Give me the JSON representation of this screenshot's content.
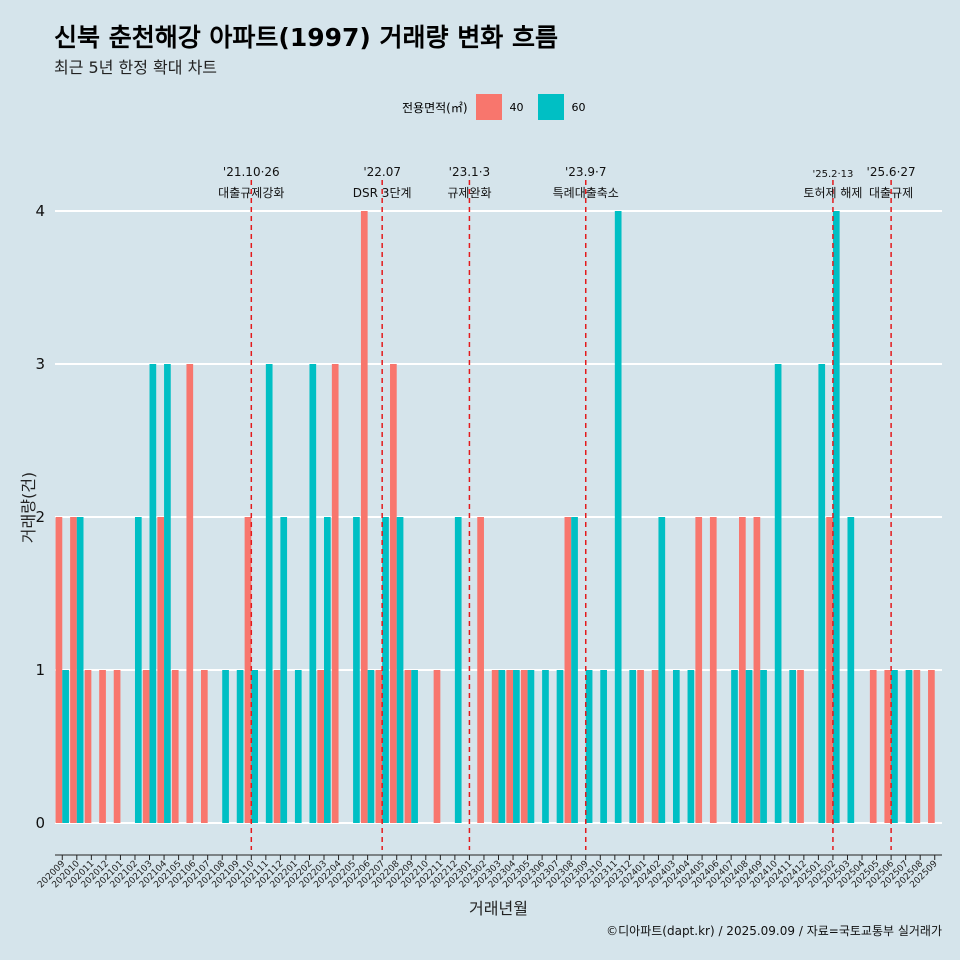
{
  "header": {
    "title": "신북 춘천해강 아파트(1997) 거래량 변화 흐름",
    "subtitle": "최근 5년 한정 확대 차트"
  },
  "legend": {
    "title": "전용면적(㎡)",
    "items": [
      {
        "label": "40",
        "color": "#f8766d"
      },
      {
        "label": "60",
        "color": "#00bfc4"
      }
    ]
  },
  "caption": "©디아파트(dapt.kr) / 2025.09.09 / 자료=국토교통부 실거래가",
  "chart_data": {
    "type": "bar",
    "xlabel": "거래년월",
    "ylabel": "거래량(건)",
    "ylim": [
      0,
      4
    ],
    "yticks": [
      0,
      1,
      2,
      3,
      4
    ],
    "grid": true,
    "legend_position": "top",
    "categories": [
      "202009",
      "202010",
      "202011",
      "202012",
      "202101",
      "202102",
      "202103",
      "202104",
      "202105",
      "202106",
      "202107",
      "202108",
      "202109",
      "202110",
      "202111",
      "202112",
      "202201",
      "202202",
      "202203",
      "202204",
      "202205",
      "202206",
      "202207",
      "202208",
      "202209",
      "202210",
      "202211",
      "202212",
      "202301",
      "202302",
      "202303",
      "202304",
      "202305",
      "202306",
      "202307",
      "202308",
      "202309",
      "202310",
      "202311",
      "202312",
      "202401",
      "202402",
      "202403",
      "202404",
      "202405",
      "202406",
      "202407",
      "202408",
      "202409",
      "202410",
      "202411",
      "202412",
      "202501",
      "202502",
      "202503",
      "202504",
      "202505",
      "202506",
      "202507",
      "202508",
      "202509"
    ],
    "series": [
      {
        "name": "40",
        "color": "#f8766d",
        "values": [
          2,
          2,
          1,
          1,
          1,
          0,
          1,
          2,
          1,
          3,
          1,
          0,
          0,
          2,
          0,
          1,
          0,
          0,
          1,
          3,
          0,
          4,
          1,
          3,
          1,
          0,
          1,
          0,
          0,
          2,
          1,
          1,
          1,
          0,
          0,
          2,
          0,
          0,
          0,
          0,
          1,
          1,
          0,
          0,
          2,
          2,
          0,
          2,
          2,
          0,
          0,
          1,
          0,
          2,
          0,
          0,
          1,
          1,
          0,
          1,
          1
        ]
      },
      {
        "name": "60",
        "color": "#00bfc4",
        "values": [
          1,
          2,
          0,
          0,
          0,
          2,
          3,
          3,
          0,
          0,
          0,
          1,
          1,
          1,
          3,
          2,
          1,
          3,
          2,
          0,
          2,
          1,
          2,
          2,
          1,
          0,
          0,
          2,
          0,
          0,
          1,
          1,
          1,
          1,
          1,
          2,
          1,
          1,
          4,
          1,
          0,
          2,
          1,
          1,
          0,
          0,
          1,
          1,
          1,
          3,
          1,
          0,
          3,
          4,
          2,
          0,
          0,
          1,
          1,
          0,
          0
        ]
      }
    ],
    "annotations": [
      {
        "label": "'21.10·26",
        "sublabel": "대출규제강화",
        "x": "202110"
      },
      {
        "label": "'22.07",
        "sublabel": "DSR 3단계",
        "x": "202207"
      },
      {
        "label": "'23.1·3",
        "sublabel": "규제완화",
        "x": "202301"
      },
      {
        "label": "'23.9·7",
        "sublabel": "특례대출축소",
        "x": "202309"
      },
      {
        "label": "'25.2·13",
        "sublabel": "토허제 해제",
        "x": "202502"
      },
      {
        "label": "'25.6·27",
        "sublabel": "대출규제",
        "x": "202506"
      }
    ]
  }
}
